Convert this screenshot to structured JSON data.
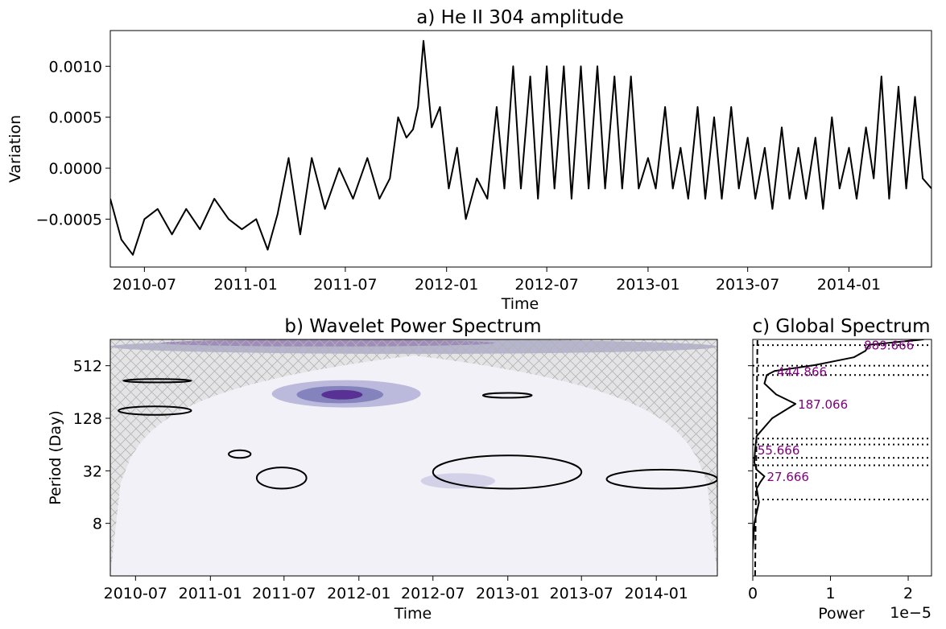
{
  "chart_data": [
    {
      "type": "line",
      "title": "a) He II 304 amplitude",
      "xlabel": "Time",
      "ylabel": "Variation",
      "xlim": [
        "2010-04-30",
        "2014-05-31"
      ],
      "ylim": [
        -0.00097,
        0.00135
      ],
      "x_ticks": [
        "2010-07",
        "2011-01",
        "2011-07",
        "2012-01",
        "2012-07",
        "2013-01",
        "2013-07",
        "2014-01"
      ],
      "y_ticks": [
        {
          "value": -0.0005,
          "label": "−0.0005"
        },
        {
          "value": 0.0,
          "label": "0.0000"
        },
        {
          "value": 0.0005,
          "label": "0.0005"
        },
        {
          "value": 0.001,
          "label": "0.0010"
        }
      ],
      "color": "#000000",
      "series": [
        {
          "x": [
            "2010-04-30",
            "2010-05-20",
            "2010-06-10",
            "2010-07-01",
            "2010-07-25",
            "2010-08-20",
            "2010-09-15",
            "2010-10-10",
            "2010-11-05",
            "2010-12-01",
            "2010-12-25",
            "2011-01-20",
            "2011-02-10",
            "2011-02-28",
            "2011-03-20",
            "2011-04-10",
            "2011-05-01",
            "2011-05-25",
            "2011-06-20",
            "2011-07-15",
            "2011-08-10",
            "2011-09-01",
            "2011-09-20",
            "2011-10-05",
            "2011-10-20",
            "2011-11-01",
            "2011-11-10",
            "2011-11-20",
            "2011-12-05",
            "2011-12-20",
            "2012-01-05",
            "2012-01-20",
            "2012-02-05",
            "2012-02-25",
            "2012-03-15",
            "2012-04-01",
            "2012-04-15",
            "2012-05-01",
            "2012-05-15",
            "2012-06-01",
            "2012-06-15",
            "2012-07-01",
            "2012-07-15",
            "2012-08-01",
            "2012-08-15",
            "2012-09-01",
            "2012-09-15",
            "2012-10-01",
            "2012-10-15",
            "2012-11-01",
            "2012-11-15",
            "2012-12-01",
            "2012-12-15",
            "2013-01-01",
            "2013-01-15",
            "2013-02-01",
            "2013-02-15",
            "2013-03-01",
            "2013-03-15",
            "2013-04-01",
            "2013-04-15",
            "2013-05-01",
            "2013-05-15",
            "2013-06-01",
            "2013-06-15",
            "2013-07-01",
            "2013-07-15",
            "2013-08-01",
            "2013-08-15",
            "2013-09-01",
            "2013-09-15",
            "2013-10-01",
            "2013-10-15",
            "2013-11-01",
            "2013-11-15",
            "2013-12-01",
            "2013-12-15",
            "2014-01-01",
            "2014-01-15",
            "2014-02-01",
            "2014-02-15",
            "2014-03-01",
            "2014-03-15",
            "2014-04-01",
            "2014-04-15",
            "2014-05-01",
            "2014-05-15",
            "2014-05-31"
          ],
          "y": [
            -0.0003,
            -0.0007,
            -0.00085,
            -0.0005,
            -0.0004,
            -0.00065,
            -0.0004,
            -0.0006,
            -0.0003,
            -0.0005,
            -0.0006,
            -0.0005,
            -0.0008,
            -0.00045,
            0.0001,
            -0.00065,
            0.0001,
            -0.0004,
            0.0,
            -0.0003,
            0.0001,
            -0.0003,
            -0.0001,
            0.0005,
            0.0003,
            0.00038,
            0.0006,
            0.00125,
            0.0004,
            0.0006,
            -0.0002,
            0.0002,
            -0.0005,
            -0.0001,
            -0.0003,
            0.0006,
            -0.0002,
            0.001,
            -0.0002,
            0.0009,
            -0.0003,
            0.001,
            -0.0002,
            0.001,
            -0.0003,
            0.001,
            -0.0002,
            0.001,
            -0.0002,
            0.0009,
            -0.0002,
            0.0009,
            -0.0002,
            0.0001,
            -0.0002,
            0.0006,
            -0.0002,
            0.0002,
            -0.0003,
            0.0006,
            -0.0003,
            0.0005,
            -0.0003,
            0.0006,
            -0.0002,
            0.0003,
            -0.0003,
            0.0002,
            -0.0004,
            0.0004,
            -0.0003,
            0.0002,
            -0.0003,
            0.0003,
            -0.0004,
            0.0005,
            -0.0002,
            0.0002,
            -0.0003,
            0.0004,
            -0.0001,
            0.0009,
            -0.0003,
            0.0008,
            -0.0002,
            0.0007,
            -0.0001,
            -0.0002
          ]
        }
      ]
    },
    {
      "type": "heatmap",
      "title": "b) Wavelet Power Spectrum",
      "xlabel": "Time",
      "ylabel": "Period (Day)",
      "xlim": [
        "2010-04-30",
        "2014-05-31"
      ],
      "ylog2": true,
      "period_range": [
        2,
        1024
      ],
      "x_ticks": [
        "2010-07",
        "2011-01",
        "2011-07",
        "2012-01",
        "2012-07",
        "2013-01",
        "2013-07",
        "2014-01"
      ],
      "y_ticks": [
        {
          "value": 8,
          "label": "8"
        },
        {
          "value": 32,
          "label": "32"
        },
        {
          "value": 128,
          "label": "128"
        },
        {
          "value": 512,
          "label": "512"
        }
      ],
      "colormap": [
        "#f2f1f7",
        "#e3e2ef",
        "#cecde6",
        "#b5b3d8",
        "#9a98c8",
        "#807db9",
        "#6a51a3",
        "#54278f"
      ],
      "power_regions": [
        {
          "t0": "2010-04-30",
          "t1": "2014-05-31",
          "p0": 700,
          "p1": 1024,
          "level": 5
        },
        {
          "t0": "2010-09-01",
          "t1": "2012-12-01",
          "p0": 850,
          "p1": 1024,
          "level": 7
        },
        {
          "t0": "2011-06-01",
          "t1": "2012-06-01",
          "p0": 170,
          "p1": 350,
          "level": 3
        },
        {
          "t0": "2011-08-01",
          "t1": "2012-03-01",
          "p0": 190,
          "p1": 300,
          "level": 5
        },
        {
          "t0": "2011-10-01",
          "t1": "2012-01-10",
          "p0": 210,
          "p1": 270,
          "level": 7
        },
        {
          "t0": "2012-06-01",
          "t1": "2012-12-01",
          "p0": 20,
          "p1": 30,
          "level": 2
        }
      ],
      "significance_contours": [
        {
          "t0": "2011-04-25",
          "t1": "2011-08-25",
          "p0": 20,
          "p1": 35
        },
        {
          "t0": "2012-07-01",
          "t1": "2013-07-01",
          "p0": 20,
          "p1": 48
        },
        {
          "t0": "2013-09-01",
          "t1": "2014-05-31",
          "p0": 20,
          "p1": 33
        },
        {
          "t0": "2011-02-15",
          "t1": "2011-04-10",
          "p0": 45,
          "p1": 55
        },
        {
          "t0": "2010-06-01",
          "t1": "2010-11-15",
          "p0": 330,
          "p1": 360
        },
        {
          "t0": "2010-05-20",
          "t1": "2010-11-15",
          "p0": 140,
          "p1": 175
        },
        {
          "t0": "2012-11-01",
          "t1": "2013-03-01",
          "p0": 220,
          "p1": 250
        }
      ],
      "cone_of_influence": true
    },
    {
      "type": "line",
      "title": "c) Global Spectrum",
      "xlabel": "Power",
      "xlim": [
        0,
        2.3e-05
      ],
      "offset_text": "1e−5",
      "x_ticks": [
        {
          "value": 0,
          "label": "0"
        },
        {
          "value": 1e-05,
          "label": "1"
        },
        {
          "value": 2e-05,
          "label": "2"
        }
      ],
      "series": [
        {
          "period": [
            4,
            8,
            14,
            20,
            24,
            27.666,
            33,
            40,
            55.666,
            80,
            128,
            187.066,
            240,
            320,
            400,
            444.866,
            520,
            640,
            760,
            889.666,
            1024
          ],
          "power": [
            0.0,
            2e-07,
            8e-07,
            5e-07,
            1e-06,
            1.5e-06,
            5e-07,
            2e-07,
            3e-07,
            5e-07,
            2.5e-06,
            5.5e-06,
            3e-06,
            1.5e-06,
            1.8e-06,
            2.8e-06,
            8e-06,
            1.3e-05,
            1.45e-05,
            1.5e-05,
            2.2e-05
          ]
        }
      ],
      "significance_line": [
        3e-07,
        6e-07
      ],
      "peak_lines": [
        15,
        37,
        45,
        64,
        75,
        400,
        512,
        880
      ],
      "peak_labels": [
        {
          "period": 27.666,
          "power": 1.5e-06,
          "label": "27.666"
        },
        {
          "period": 55.666,
          "power": 3e-07,
          "label": "55.666"
        },
        {
          "period": 187.066,
          "power": 5.5e-06,
          "label": "187.066"
        },
        {
          "period": 444.866,
          "power": 2.8e-06,
          "label": "444.866"
        },
        {
          "period": 889.666,
          "power": 1.4e-05,
          "label": "889.666"
        }
      ],
      "label_color": "#800080"
    }
  ]
}
